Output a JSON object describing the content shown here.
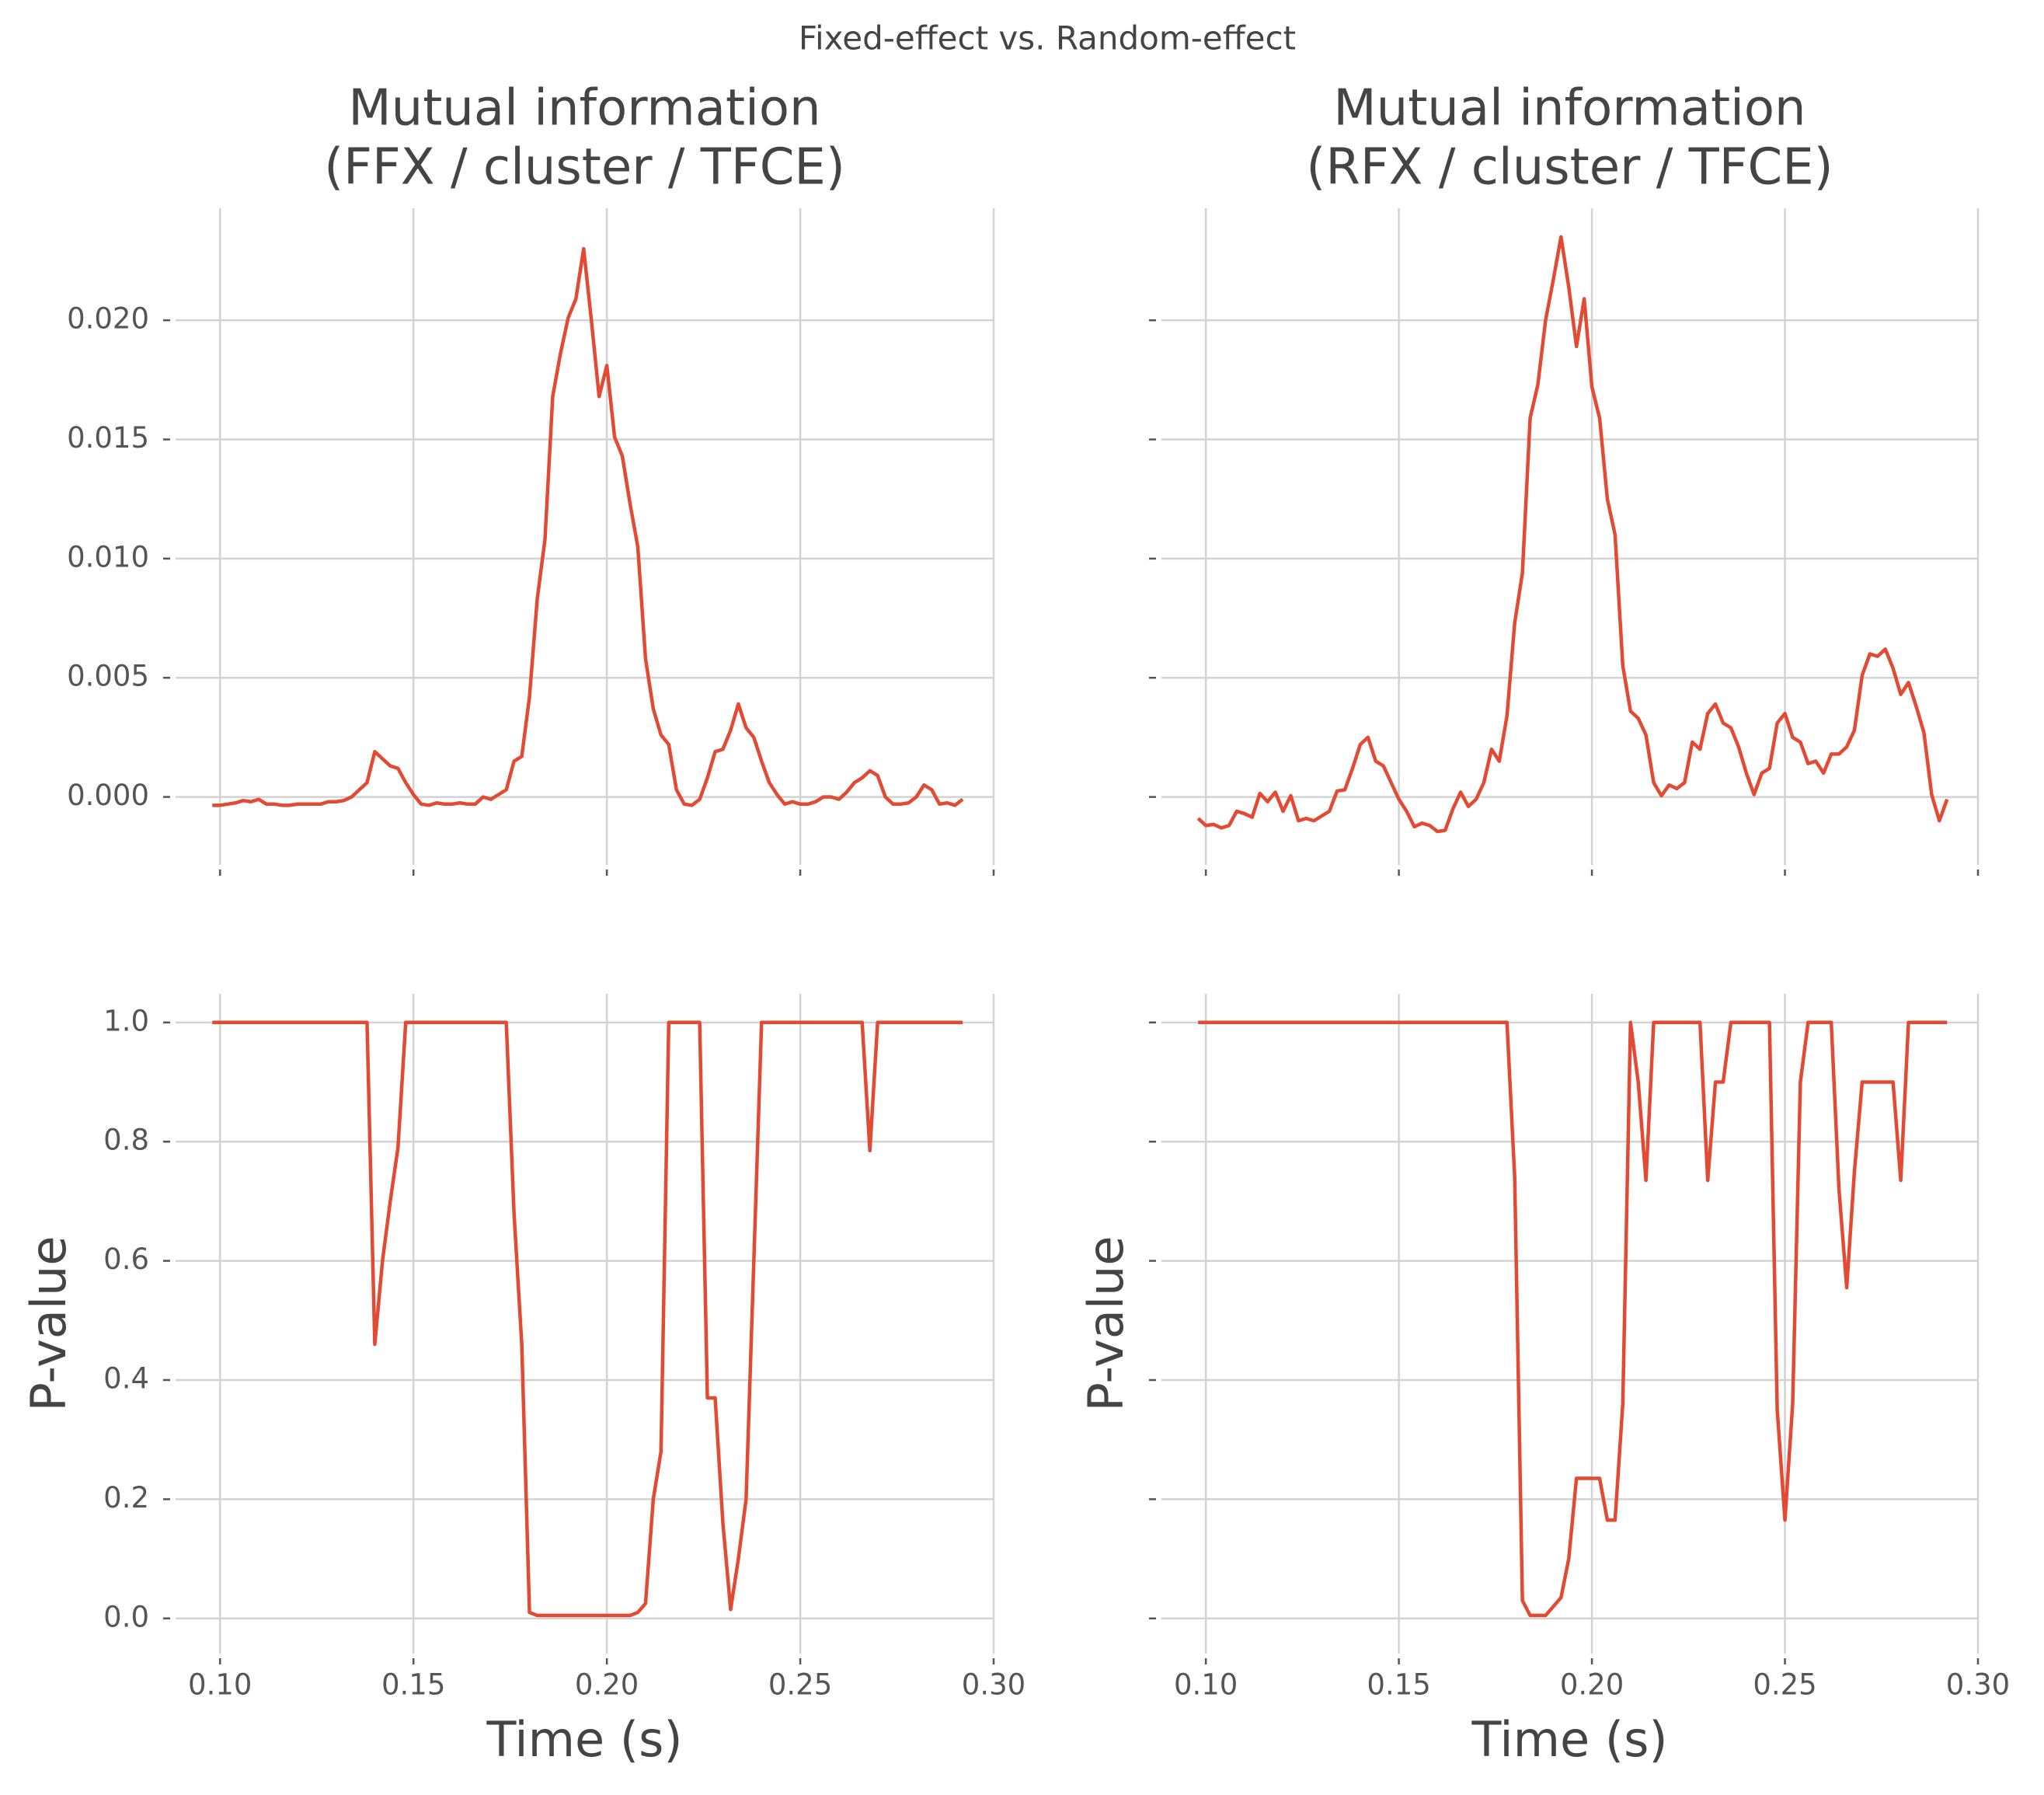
{
  "title": "Fixed-effect vs. Random-effect",
  "chart_data": [
    {
      "type": "line",
      "title": [
        "Mutual information",
        "(FFX / cluster / TFCE)"
      ],
      "x": [
        0.098,
        0.1,
        0.102,
        0.104,
        0.106,
        0.108,
        0.11,
        0.112,
        0.114,
        0.116,
        0.118,
        0.12,
        0.122,
        0.124,
        0.126,
        0.128,
        0.13,
        0.132,
        0.134,
        0.136,
        0.138,
        0.14,
        0.142,
        0.144,
        0.146,
        0.148,
        0.15,
        0.152,
        0.154,
        0.156,
        0.158,
        0.16,
        0.162,
        0.164,
        0.166,
        0.168,
        0.17,
        0.172,
        0.174,
        0.176,
        0.178,
        0.18,
        0.182,
        0.184,
        0.186,
        0.188,
        0.19,
        0.192,
        0.194,
        0.196,
        0.198,
        0.2,
        0.202,
        0.204,
        0.206,
        0.208,
        0.21,
        0.212,
        0.214,
        0.216,
        0.218,
        0.22,
        0.222,
        0.224,
        0.226,
        0.228,
        0.23,
        0.232,
        0.234,
        0.236,
        0.238,
        0.24,
        0.242,
        0.244,
        0.246,
        0.248,
        0.25,
        0.252,
        0.254,
        0.256,
        0.258,
        0.26,
        0.262,
        0.264,
        0.266,
        0.268,
        0.27,
        0.272,
        0.274,
        0.276,
        0.278,
        0.28,
        0.282,
        0.284,
        0.286,
        0.288,
        0.29,
        0.292
      ],
      "series": [
        {
          "color": "#e24a33",
          "values": [
            -0.00035,
            -0.00035,
            -0.0003,
            -0.00025,
            -0.00015,
            -0.0002,
            -0.0001,
            -0.0003,
            -0.0003,
            -0.00035,
            -0.00035,
            -0.0003,
            -0.0003,
            -0.0003,
            -0.0003,
            -0.0002,
            -0.0002,
            -0.00015,
            0,
            0.0003,
            0.0006,
            0.0019,
            0.0016,
            0.0013,
            0.0012,
            0.0006,
            0.0001,
            -0.0003,
            -0.00035,
            -0.00025,
            -0.0003,
            -0.0003,
            -0.00025,
            -0.0003,
            -0.0003,
            0,
            -0.0001,
            0.0001,
            0.0003,
            0.0015,
            0.0017,
            0.0042,
            0.0083,
            0.0108,
            0.0168,
            0.0186,
            0.0201,
            0.0209,
            0.023,
            0.02,
            0.0168,
            0.0181,
            0.0151,
            0.0143,
            0.0123,
            0.0105,
            0.0058,
            0.0037,
            0.0026,
            0.0022,
            0.0003,
            -0.0003,
            -0.00035,
            -0.0001,
            0.0008,
            0.0019,
            0.002,
            0.0028,
            0.0039,
            0.0029,
            0.0025,
            0.0015,
            0.0006,
            0.0001,
            -0.0003,
            -0.0002,
            -0.0003,
            -0.0003,
            -0.0002,
            0,
            0,
            -0.0001,
            0.0002,
            0.0006,
            0.0008,
            0.0011,
            0.0009,
            0,
            -0.0003,
            -0.0003,
            -0.00025,
            0,
            0.0005,
            0.0003,
            -0.0003,
            -0.00025,
            -0.00035,
            -0.0001
          ]
        }
      ],
      "xlim": [
        0.0885,
        0.3
      ],
      "ylim": [
        -0.00285,
        0.0247
      ],
      "xticks": [
        0.1,
        0.15,
        0.2,
        0.25,
        0.3
      ],
      "yticks": [
        {
          "value": 0,
          "label": "0.000"
        },
        {
          "value": 0.005,
          "label": "0.005"
        },
        {
          "value": 0.01,
          "label": "0.010"
        },
        {
          "value": 0.015,
          "label": "0.015"
        },
        {
          "value": 0.02,
          "label": "0.020"
        }
      ],
      "grid": true
    },
    {
      "type": "line",
      "title": [
        "Mutual information",
        "(RFX / cluster / TFCE)"
      ],
      "x": [
        0.098,
        0.1,
        0.102,
        0.104,
        0.106,
        0.108,
        0.11,
        0.112,
        0.114,
        0.116,
        0.118,
        0.12,
        0.122,
        0.124,
        0.126,
        0.128,
        0.13,
        0.132,
        0.134,
        0.136,
        0.138,
        0.14,
        0.142,
        0.144,
        0.146,
        0.148,
        0.15,
        0.152,
        0.154,
        0.156,
        0.158,
        0.16,
        0.162,
        0.164,
        0.166,
        0.168,
        0.17,
        0.172,
        0.174,
        0.176,
        0.178,
        0.18,
        0.182,
        0.184,
        0.186,
        0.188,
        0.19,
        0.192,
        0.194,
        0.196,
        0.198,
        0.2,
        0.202,
        0.204,
        0.206,
        0.208,
        0.21,
        0.212,
        0.214,
        0.216,
        0.218,
        0.22,
        0.222,
        0.224,
        0.226,
        0.228,
        0.23,
        0.232,
        0.234,
        0.236,
        0.238,
        0.24,
        0.242,
        0.244,
        0.246,
        0.248,
        0.25,
        0.252,
        0.254,
        0.256,
        0.258,
        0.26,
        0.262,
        0.264,
        0.266,
        0.268,
        0.27,
        0.272,
        0.274,
        0.276,
        0.278,
        0.28,
        0.282,
        0.284,
        0.286,
        0.288,
        0.29,
        0.292
      ],
      "series": [
        {
          "color": "#e24a33",
          "values": [
            -0.0009,
            -0.0012,
            -0.00115,
            -0.0013,
            -0.0012,
            -0.0006,
            -0.0007,
            -0.00085,
            0.00015,
            -0.0002,
            0.0002,
            -0.0006,
            5e-05,
            -0.001,
            -0.0009,
            -0.001,
            -0.0008,
            -0.0006,
            0.00025,
            0.0003,
            0.0012,
            0.0022,
            0.0025,
            0.0015,
            0.0013,
            0.0006,
            -0.0001,
            -0.0006,
            -0.00125,
            -0.0011,
            -0.0012,
            -0.00145,
            -0.0014,
            -0.0005,
            0.0002,
            -0.0004,
            -0.0001,
            0.0006,
            0.002,
            0.0015,
            0.0034,
            0.0073,
            0.0094,
            0.0159,
            0.0173,
            0.02,
            0.0217,
            0.0235,
            0.0214,
            0.0189,
            0.0209,
            0.0172,
            0.0159,
            0.0125,
            0.011,
            0.0055,
            0.0036,
            0.0033,
            0.0026,
            0.0006,
            5e-05,
            0.0005,
            0.00035,
            0.0006,
            0.0023,
            0.002,
            0.0035,
            0.0039,
            0.0031,
            0.0029,
            0.0021,
            0.001,
            0.0001,
            0.001,
            0.0012,
            0.0031,
            0.0035,
            0.0025,
            0.0023,
            0.0014,
            0.0015,
            0.001,
            0.0018,
            0.0018,
            0.0021,
            0.0028,
            0.0051,
            0.006,
            0.0059,
            0.0062,
            0.0054,
            0.0043,
            0.0048,
            0.0038,
            0.0027,
            0.0001,
            -0.001,
            -0.0001
          ]
        }
      ],
      "xlim": [
        0.0885,
        0.3
      ],
      "ylim": [
        -0.00285,
        0.0247
      ],
      "xticks": [
        0.1,
        0.15,
        0.2,
        0.25,
        0.3
      ],
      "yticks": [
        0,
        0.005,
        0.01,
        0.015,
        0.02
      ],
      "grid": true
    },
    {
      "type": "line",
      "xlabel": "Time (s)",
      "ylabel": "P-value",
      "x": [
        0.098,
        0.1,
        0.102,
        0.104,
        0.106,
        0.108,
        0.11,
        0.112,
        0.114,
        0.116,
        0.118,
        0.12,
        0.122,
        0.124,
        0.126,
        0.128,
        0.13,
        0.132,
        0.134,
        0.136,
        0.138,
        0.14,
        0.142,
        0.144,
        0.146,
        0.148,
        0.15,
        0.152,
        0.154,
        0.156,
        0.158,
        0.16,
        0.162,
        0.164,
        0.166,
        0.168,
        0.17,
        0.172,
        0.174,
        0.176,
        0.178,
        0.18,
        0.182,
        0.184,
        0.186,
        0.188,
        0.19,
        0.192,
        0.194,
        0.196,
        0.198,
        0.2,
        0.202,
        0.204,
        0.206,
        0.208,
        0.21,
        0.212,
        0.214,
        0.216,
        0.218,
        0.22,
        0.222,
        0.224,
        0.226,
        0.228,
        0.23,
        0.232,
        0.234,
        0.236,
        0.238,
        0.24,
        0.242,
        0.244,
        0.246,
        0.248,
        0.25,
        0.252,
        0.254,
        0.256,
        0.258,
        0.26,
        0.262,
        0.264,
        0.266,
        0.268,
        0.27,
        0.272,
        0.274,
        0.276,
        0.278,
        0.28,
        0.282,
        0.284,
        0.286,
        0.288,
        0.29,
        0.292
      ],
      "series": [
        {
          "color": "#e24a33",
          "values": [
            1,
            1,
            1,
            1,
            1,
            1,
            1,
            1,
            1,
            1,
            1,
            1,
            1,
            1,
            1,
            1,
            1,
            1,
            1,
            1,
            1,
            0.46,
            0.6,
            0.7,
            0.79,
            1,
            1,
            1,
            1,
            1,
            1,
            1,
            1,
            1,
            1,
            1,
            1,
            1,
            1,
            0.68,
            0.46,
            0.01,
            0.005,
            0.005,
            0.005,
            0.005,
            0.005,
            0.005,
            0.005,
            0.005,
            0.005,
            0.005,
            0.005,
            0.005,
            0.005,
            0.01,
            0.025,
            0.2,
            0.28,
            1,
            1,
            1,
            1,
            1,
            0.37,
            0.37,
            0.16,
            0.015,
            0.1,
            0.2,
            0.6,
            1,
            1,
            1,
            1,
            1,
            1,
            1,
            1,
            1,
            1,
            1,
            1,
            1,
            1,
            0.785,
            1,
            1,
            1,
            1,
            1,
            1,
            1,
            1,
            1,
            1,
            1,
            1
          ]
        }
      ],
      "xlim": [
        0.0885,
        0.3
      ],
      "ylim": [
        -0.059,
        1.048
      ],
      "xticks": [
        {
          "value": 0.1,
          "label": "0.10"
        },
        {
          "value": 0.15,
          "label": "0.15"
        },
        {
          "value": 0.2,
          "label": "0.20"
        },
        {
          "value": 0.25,
          "label": "0.25"
        },
        {
          "value": 0.3,
          "label": "0.30"
        }
      ],
      "yticks": [
        {
          "value": 0,
          "label": "0.0"
        },
        {
          "value": 0.2,
          "label": "0.2"
        },
        {
          "value": 0.4,
          "label": "0.4"
        },
        {
          "value": 0.6,
          "label": "0.6"
        },
        {
          "value": 0.8,
          "label": "0.8"
        },
        {
          "value": 1,
          "label": "1.0"
        }
      ],
      "grid": true
    },
    {
      "type": "line",
      "xlabel": "Time (s)",
      "ylabel": "P-value",
      "x": [
        0.098,
        0.1,
        0.102,
        0.104,
        0.106,
        0.108,
        0.11,
        0.112,
        0.114,
        0.116,
        0.118,
        0.12,
        0.122,
        0.124,
        0.126,
        0.128,
        0.13,
        0.132,
        0.134,
        0.136,
        0.138,
        0.14,
        0.142,
        0.144,
        0.146,
        0.148,
        0.15,
        0.152,
        0.154,
        0.156,
        0.158,
        0.16,
        0.162,
        0.164,
        0.166,
        0.168,
        0.17,
        0.172,
        0.174,
        0.176,
        0.178,
        0.18,
        0.182,
        0.184,
        0.186,
        0.188,
        0.19,
        0.192,
        0.194,
        0.196,
        0.198,
        0.2,
        0.202,
        0.204,
        0.206,
        0.208,
        0.21,
        0.212,
        0.214,
        0.216,
        0.218,
        0.22,
        0.222,
        0.224,
        0.226,
        0.228,
        0.23,
        0.232,
        0.234,
        0.236,
        0.238,
        0.24,
        0.242,
        0.244,
        0.246,
        0.248,
        0.25,
        0.252,
        0.254,
        0.256,
        0.258,
        0.26,
        0.262,
        0.264,
        0.266,
        0.268,
        0.27,
        0.272,
        0.274,
        0.276,
        0.278,
        0.28,
        0.282,
        0.284,
        0.286,
        0.288,
        0.29,
        0.292
      ],
      "series": [
        {
          "color": "#e24a33",
          "values": [
            1,
            1,
            1,
            1,
            1,
            1,
            1,
            1,
            1,
            1,
            1,
            1,
            1,
            1,
            1,
            1,
            1,
            1,
            1,
            1,
            1,
            1,
            1,
            1,
            1,
            1,
            1,
            1,
            1,
            1,
            1,
            1,
            1,
            1,
            1,
            1,
            1,
            1,
            1,
            1,
            1,
            0.74,
            0.03,
            0.005,
            0.005,
            0.005,
            0.02,
            0.035,
            0.1,
            0.235,
            0.235,
            0.235,
            0.235,
            0.165,
            0.165,
            0.36,
            1,
            0.9,
            0.735,
            1,
            1,
            1,
            1,
            1,
            1,
            1,
            0.735,
            0.9,
            0.9,
            1,
            1,
            1,
            1,
            1,
            1,
            0.35,
            0.165,
            0.36,
            0.9,
            1,
            1,
            1,
            1,
            0.72,
            0.555,
            0.75,
            0.9,
            0.9,
            0.9,
            0.9,
            0.9,
            0.735,
            1,
            1,
            1,
            1,
            1,
            1
          ]
        }
      ],
      "xlim": [
        0.0885,
        0.3
      ],
      "ylim": [
        -0.059,
        1.048
      ],
      "xticks": [
        {
          "value": 0.1,
          "label": "0.10"
        },
        {
          "value": 0.15,
          "label": "0.15"
        },
        {
          "value": 0.2,
          "label": "0.20"
        },
        {
          "value": 0.25,
          "label": "0.25"
        },
        {
          "value": 0.3,
          "label": "0.30"
        }
      ],
      "yticks": [
        0,
        0.2,
        0.4,
        0.6,
        0.8,
        1
      ],
      "grid": true
    }
  ]
}
